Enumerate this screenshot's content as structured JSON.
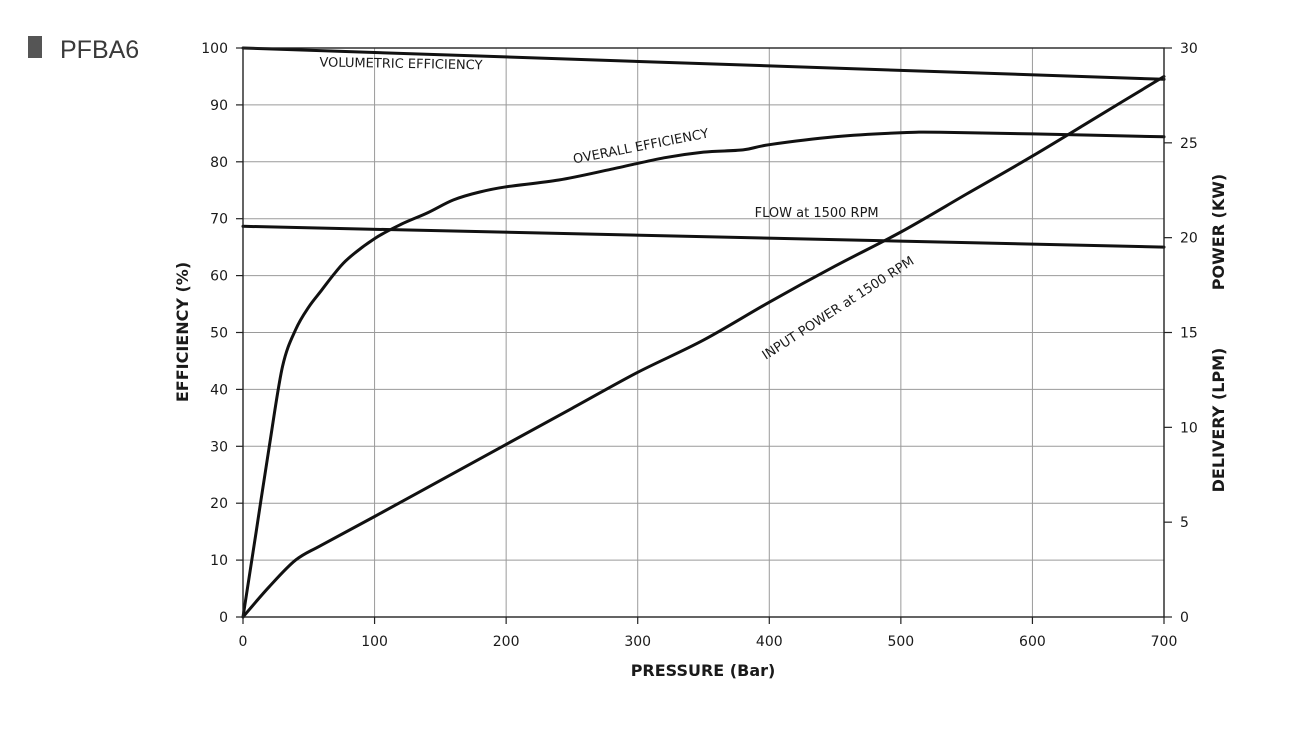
{
  "heading": "PFBA6",
  "chart_data": {
    "type": "line",
    "xlabel": "PRESSURE (Bar)",
    "ylabel": "EFFICIENCY (%)",
    "y2label_top": "POWER (KW)",
    "y2label_bottom": "DELIVERY (LPM)",
    "xlim": [
      0,
      700
    ],
    "ylim": [
      0,
      100
    ],
    "y2lim": [
      0,
      30
    ],
    "xticks": [
      "0",
      "100",
      "200",
      "300",
      "400",
      "500",
      "600",
      "700"
    ],
    "yticks": [
      "0",
      "10",
      "20",
      "30",
      "40",
      "50",
      "60",
      "70",
      "80",
      "90",
      "100"
    ],
    "y2ticks": [
      "0",
      "5",
      "10",
      "15",
      "20",
      "25",
      "30"
    ],
    "grid": true,
    "series": [
      {
        "name": "VOLUMETRIC EFFICIENCY",
        "axis": "left",
        "x": [
          0,
          700
        ],
        "y": [
          100,
          94.5
        ]
      },
      {
        "name": "OVERALL EFFICIENCY",
        "axis": "left",
        "x": [
          0,
          10,
          20,
          30,
          40,
          50,
          60,
          70,
          80,
          100,
          120,
          140,
          160,
          180,
          200,
          240,
          280,
          320,
          350,
          380,
          400,
          450,
          500,
          530,
          600,
          700
        ],
        "y": [
          0,
          15,
          30,
          44,
          50.5,
          54.5,
          57.5,
          60.5,
          63,
          66.5,
          69,
          71,
          73.3,
          74.7,
          75.6,
          76.8,
          78.7,
          80.7,
          81.7,
          82.1,
          83,
          84.4,
          85.1,
          85.2,
          84.9,
          84.4
        ]
      },
      {
        "name": "FLOW at 1500 RPM",
        "axis": "right",
        "x": [
          0,
          700
        ],
        "y": [
          20.6,
          19.5
        ]
      },
      {
        "name": "INPUT POWER at 1500 RPM",
        "axis": "right",
        "x": [
          0,
          20,
          40,
          60,
          100,
          150,
          200,
          250,
          300,
          350,
          400,
          450,
          500,
          550,
          600,
          650,
          700
        ],
        "y": [
          0,
          1.6,
          3.0,
          3.8,
          5.3,
          7.2,
          9.1,
          11.0,
          12.9,
          14.6,
          16.6,
          18.5,
          20.3,
          22.3,
          24.3,
          26.4,
          28.5
        ]
      }
    ],
    "annotations": [
      {
        "text": "VOLUMETRIC EFFICIENCY",
        "x": 120,
        "y": 96.5,
        "axis": "left",
        "rotate": 1
      },
      {
        "text": "OVERALL EFFICIENCY",
        "x": 303,
        "y": 82,
        "axis": "left",
        "rotate": -11
      },
      {
        "text": "FLOW at 1500 RPM",
        "x": 436,
        "y": 21.1,
        "axis": "right",
        "rotate": 0
      },
      {
        "text": "INPUT POWER at 1500 RPM",
        "x": 454,
        "y": 16.1,
        "axis": "right",
        "rotate": -33
      }
    ]
  }
}
